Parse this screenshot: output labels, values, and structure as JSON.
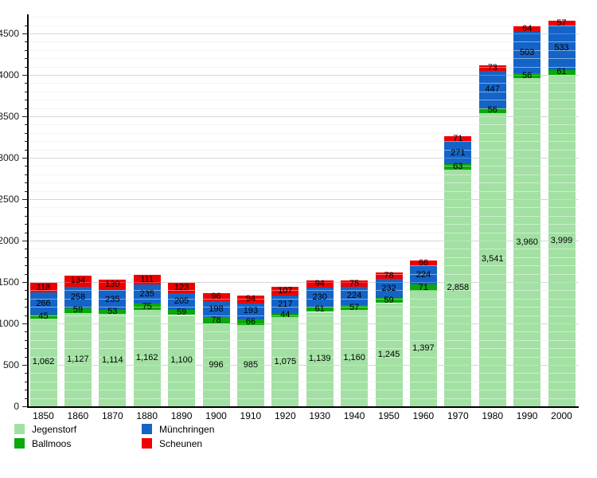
{
  "chart_data": {
    "type": "bar",
    "stacked": true,
    "title": "",
    "categories": [
      "1850",
      "1860",
      "1870",
      "1880",
      "1890",
      "1900",
      "1910",
      "1920",
      "1930",
      "1940",
      "1950",
      "1960",
      "1970",
      "1980",
      "1990",
      "2000"
    ],
    "series": [
      {
        "name": "Jegenstorf",
        "color": "#a3e0a3",
        "values": [
          1062,
          1127,
          1114,
          1162,
          1100,
          996,
          985,
          1075,
          1139,
          1160,
          1245,
          1397,
          2858,
          3541,
          3960,
          3999
        ]
      },
      {
        "name": "Ballmoos",
        "color": "#0aa80a",
        "values": [
          45,
          59,
          53,
          75,
          59,
          78,
          66,
          44,
          61,
          57,
          59,
          71,
          63,
          56,
          56,
          61
        ]
      },
      {
        "name": "Münchringen",
        "color": "#1464c8",
        "values": [
          266,
          258,
          235,
          235,
          205,
          198,
          193,
          217,
          230,
          224,
          232,
          224,
          271,
          447,
          503,
          533
        ]
      },
      {
        "name": "Scheunen",
        "color": "#ee0000",
        "values": [
          118,
          134,
          130,
          111,
          123,
          96,
          94,
          107,
          94,
          75,
          78,
          66,
          71,
          73,
          64,
          57
        ]
      }
    ],
    "ylim": [
      0,
      4730
    ],
    "y_major_step": 500,
    "y_minor_step": 100,
    "y_tick_labels": [
      "0",
      "500",
      "1000",
      "1500",
      "2000",
      "2500",
      "3000",
      "3500",
      "4000",
      "4500"
    ],
    "grid": true,
    "gridlines_over_bars": true,
    "legend_position": "bottom-left",
    "legend_columns": [
      [
        "Jegenstorf",
        "Ballmoos"
      ],
      [
        "Münchringen",
        "Scheunen"
      ]
    ],
    "colors": {
      "axis": "#000000",
      "grid_minor": "#ebebeb",
      "grid_major": "#c9c9c9",
      "label_text": "#000000"
    }
  }
}
